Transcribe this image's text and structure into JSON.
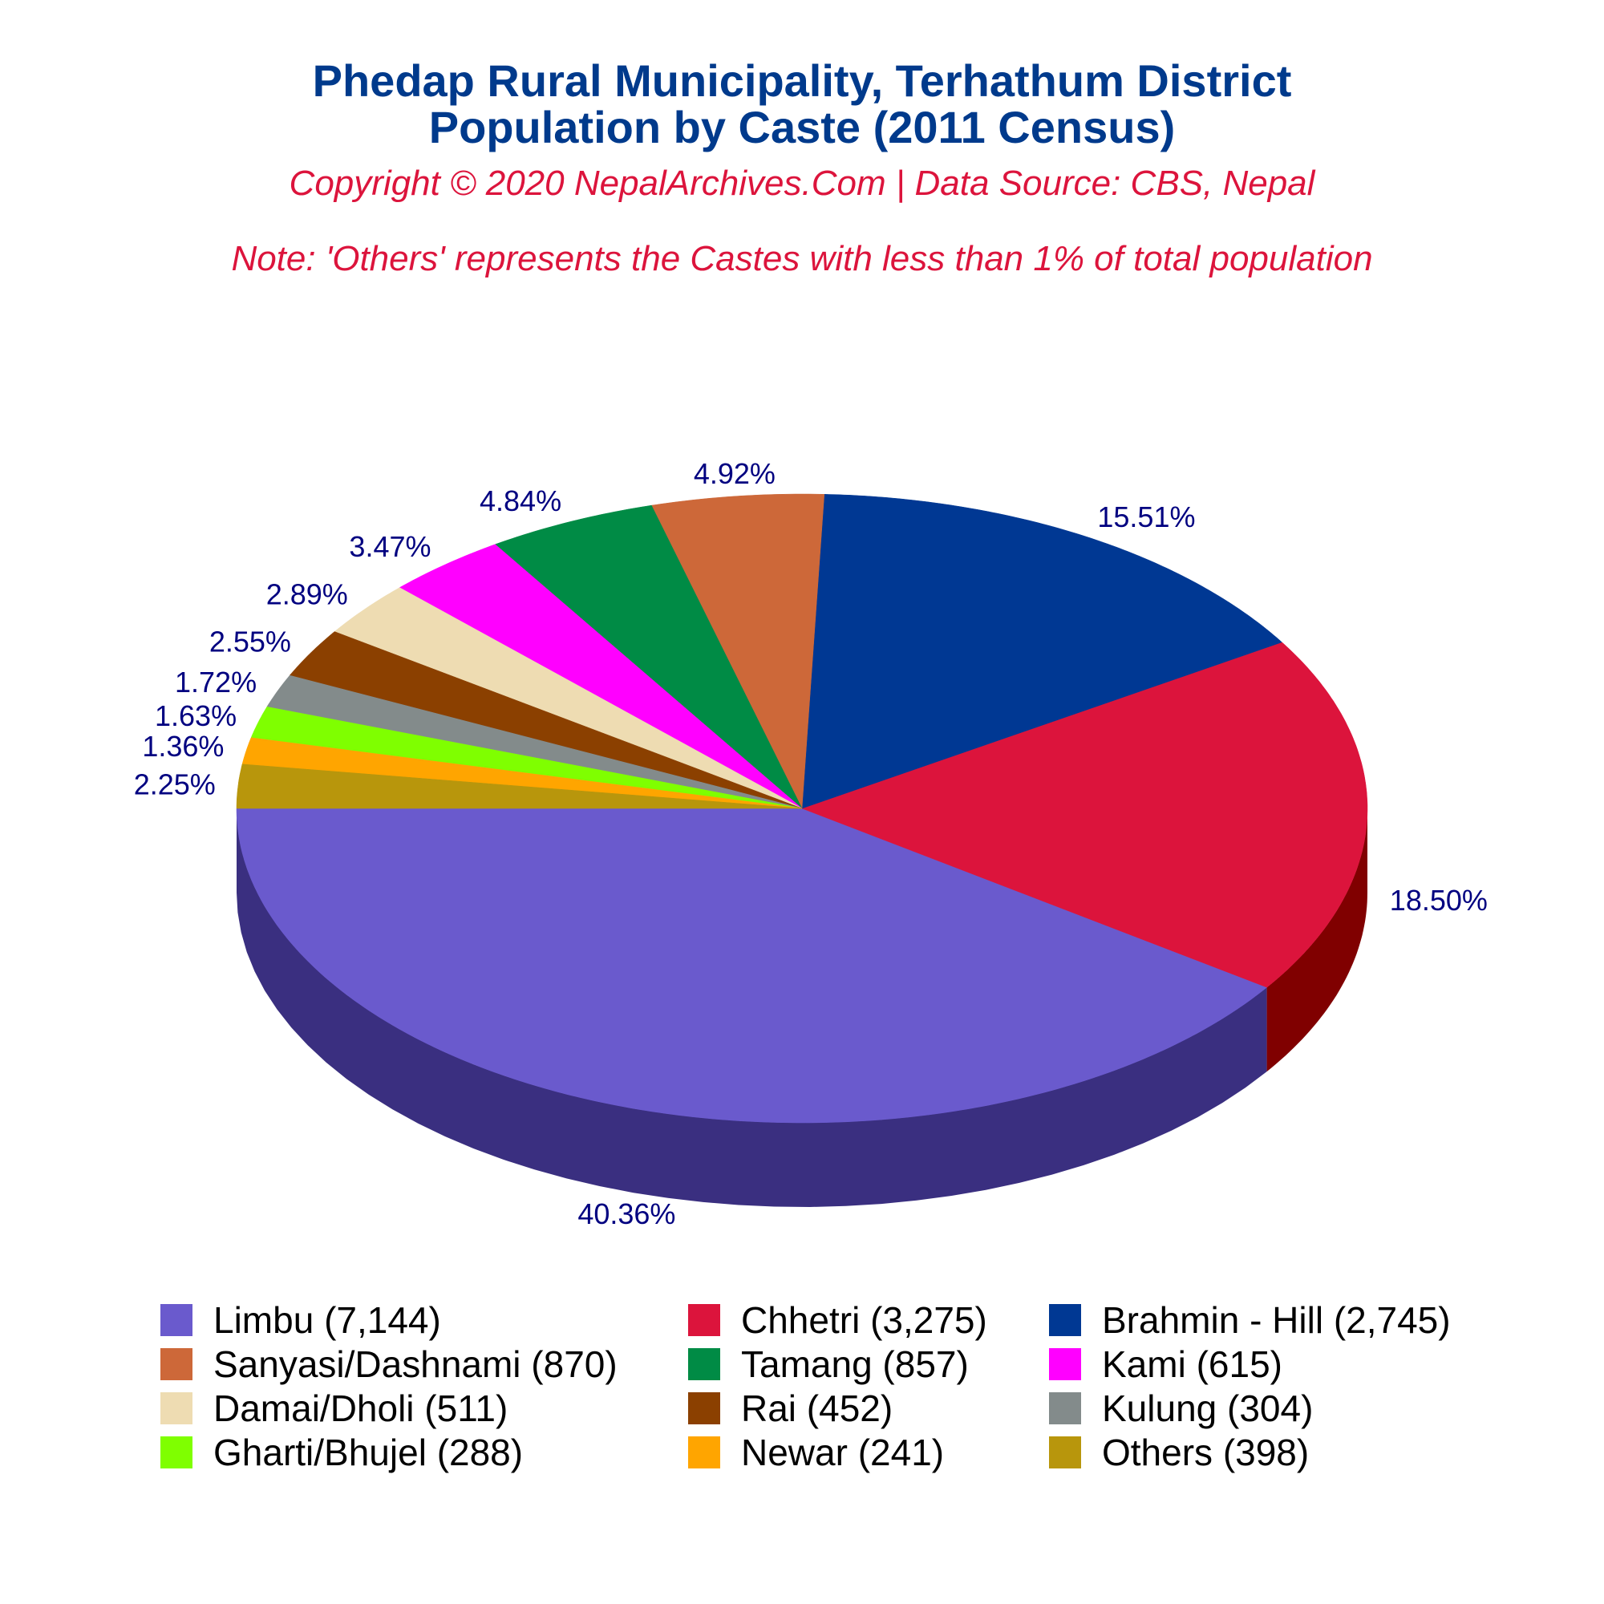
{
  "title_line1": "Phedap Rural Municipality, Terhathum District",
  "title_line2": "Population by Caste (2011 Census)",
  "copyright": "Copyright © 2020 NepalArchives.Com | Data Source: CBS, Nepal",
  "note": "Note: 'Others' represents the Castes with less than 1% of total population",
  "chart_data": {
    "type": "pie",
    "style": "3d",
    "start_angle_deg": 180,
    "direction": "counterclockwise",
    "slices": [
      {
        "label": "Limbu (7,144)",
        "value": 7144,
        "pct": "40.36%",
        "color": "#6a5acd",
        "side": "#3a2f80"
      },
      {
        "label": "Chhetri (3,275)",
        "value": 3275,
        "pct": "18.50%",
        "color": "#dc143c",
        "side": "#800000"
      },
      {
        "label": "Brahmin - Hill (2,745)",
        "value": 2745,
        "pct": "15.51%",
        "color": "#003893",
        "side": "#000033"
      },
      {
        "label": "Sanyasi/Dashnami (870)",
        "value": 870,
        "pct": "4.92%",
        "color": "#cd6839",
        "side": "#7a1a00"
      },
      {
        "label": "Tamang (857)",
        "value": 857,
        "pct": "4.84%",
        "color": "#008b45",
        "side": "#003300"
      },
      {
        "label": "Kami (615)",
        "value": 615,
        "pct": "3.47%",
        "color": "#ff00ff",
        "side": "#9b009b"
      },
      {
        "label": "Damai/Dholi (511)",
        "value": 511,
        "pct": "2.89%",
        "color": "#eedcb2",
        "side": "#8b7d5a"
      },
      {
        "label": "Rai (452)",
        "value": 452,
        "pct": "2.55%",
        "color": "#8b4000",
        "side": "#4a2000"
      },
      {
        "label": "Kulung (304)",
        "value": 304,
        "pct": "1.72%",
        "color": "#838b8b",
        "side": "#4a5050"
      },
      {
        "label": "Gharti/Bhujel (288)",
        "value": 288,
        "pct": "1.63%",
        "color": "#7fff00",
        "side": "#3f8000"
      },
      {
        "label": "Newar (241)",
        "value": 241,
        "pct": "1.36%",
        "color": "#ffa500",
        "side": "#8b5a00"
      },
      {
        "label": "Others (398)",
        "value": 398,
        "pct": "2.25%",
        "color": "#b8960c",
        "side": "#6b5500"
      }
    ]
  }
}
